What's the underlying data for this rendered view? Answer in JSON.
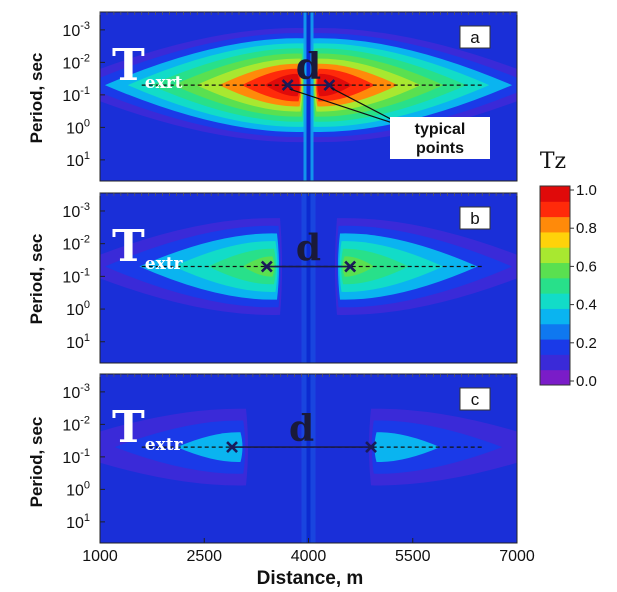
{
  "chart_data": [
    {
      "type": "heatmap",
      "panel_label": "a",
      "ylabel": "Period, sec",
      "y_scale": "log",
      "y_ticks": [
        {
          "base": "10",
          "exp": "-3"
        },
        {
          "base": "10",
          "exp": "-2"
        },
        {
          "base": "10",
          "exp": "-1"
        },
        {
          "base": "10",
          "exp": "0"
        },
        {
          "base": "10",
          "exp": "1"
        }
      ],
      "xlim": [
        1000,
        7000
      ],
      "annotation": {
        "main": "T",
        "sub": "exrt"
      },
      "distance_label": "d",
      "typical_points_label": [
        "typical",
        "points"
      ],
      "peak_period_sec": 0.05,
      "anomaly_center_m": 4000,
      "points_m": [
        3700,
        4300
      ],
      "peak_tz": 1.0
    },
    {
      "type": "heatmap",
      "panel_label": "b",
      "ylabel": "Period, sec",
      "y_scale": "log",
      "y_ticks": [
        {
          "base": "10",
          "exp": "-3"
        },
        {
          "base": "10",
          "exp": "-2"
        },
        {
          "base": "10",
          "exp": "-1"
        },
        {
          "base": "10",
          "exp": "0"
        },
        {
          "base": "10",
          "exp": "1"
        }
      ],
      "xlim": [
        1000,
        7000
      ],
      "annotation": {
        "main": "T",
        "sub": "extr"
      },
      "distance_label": "d",
      "peak_period_sec": 0.05,
      "anomaly_center_m": 4000,
      "points_m": [
        3400,
        4600
      ],
      "peak_tz": 0.6
    },
    {
      "type": "heatmap",
      "panel_label": "c",
      "ylabel": "Period, sec",
      "y_scale": "log",
      "y_ticks": [
        {
          "base": "10",
          "exp": "-3"
        },
        {
          "base": "10",
          "exp": "-2"
        },
        {
          "base": "10",
          "exp": "-1"
        },
        {
          "base": "10",
          "exp": "0"
        },
        {
          "base": "10",
          "exp": "1"
        }
      ],
      "xlim": [
        1000,
        7000
      ],
      "xlabel": "Distance, m",
      "x_ticks": [
        "1000",
        "2500",
        "4000",
        "5500",
        "7000"
      ],
      "annotation": {
        "main": "T",
        "sub": "extr"
      },
      "distance_label": "d",
      "peak_period_sec": 0.05,
      "anomaly_center_m": 4000,
      "points_m": [
        2900,
        4900
      ],
      "peak_tz": 0.35
    }
  ],
  "colorbar": {
    "title": "Tz",
    "ticks": [
      "0.0",
      "0.2",
      "0.4",
      "0.6",
      "0.8",
      "1.0"
    ],
    "range": [
      0,
      1.0
    ]
  },
  "colors": {
    "background_field": "#1a2fd8",
    "colormap": [
      "#7a1cc8",
      "#3a2ad8",
      "#1a3ae8",
      "#0f78f0",
      "#0ab4f0",
      "#12dcc8",
      "#28e08a",
      "#5ae050",
      "#a8e830",
      "#ffd20a",
      "#ff8a0a",
      "#ff2a0a",
      "#e00a0a"
    ]
  }
}
